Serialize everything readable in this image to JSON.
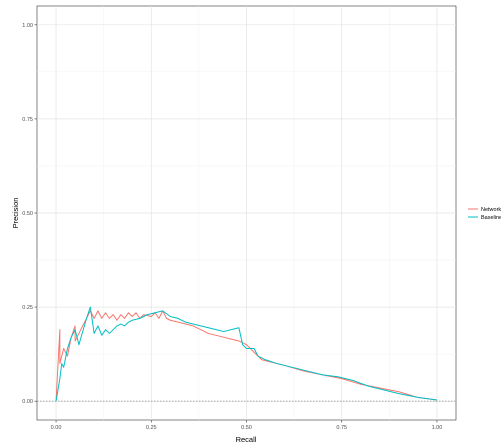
{
  "chart_data": {
    "type": "line",
    "xlabel": "Recall",
    "ylabel": "Precision",
    "xlim": [
      -0.05,
      1.05
    ],
    "ylim": [
      -0.05,
      1.05
    ],
    "x_ticks": [
      0.0,
      0.25,
      0.5,
      0.75,
      1.0
    ],
    "x_tick_labels": [
      "0.00",
      "0.25",
      "0.50",
      "0.75",
      "1.00"
    ],
    "y_ticks": [
      0.0,
      0.25,
      0.5,
      0.75,
      1.0
    ],
    "y_tick_labels": [
      "0.00",
      "0.25",
      "0.50",
      "0.75",
      "1.00"
    ],
    "grid": true,
    "legend_position": "right",
    "reference_line": {
      "y": 0.0,
      "style": "dotted",
      "color": "#999999"
    },
    "series": [
      {
        "name": "Network",
        "color": "#F8766D",
        "points": [
          [
            0.0,
            0.0
          ],
          [
            0.01,
            0.19
          ],
          [
            0.01,
            0.1
          ],
          [
            0.02,
            0.14
          ],
          [
            0.03,
            0.12
          ],
          [
            0.04,
            0.17
          ],
          [
            0.05,
            0.2
          ],
          [
            0.05,
            0.16
          ],
          [
            0.07,
            0.2
          ],
          [
            0.09,
            0.24
          ],
          [
            0.1,
            0.22
          ],
          [
            0.11,
            0.24
          ],
          [
            0.12,
            0.22
          ],
          [
            0.13,
            0.235
          ],
          [
            0.14,
            0.22
          ],
          [
            0.15,
            0.23
          ],
          [
            0.16,
            0.215
          ],
          [
            0.17,
            0.23
          ],
          [
            0.18,
            0.22
          ],
          [
            0.19,
            0.235
          ],
          [
            0.2,
            0.225
          ],
          [
            0.21,
            0.235
          ],
          [
            0.22,
            0.22
          ],
          [
            0.23,
            0.23
          ],
          [
            0.25,
            0.225
          ],
          [
            0.26,
            0.235
          ],
          [
            0.27,
            0.22
          ],
          [
            0.28,
            0.24
          ],
          [
            0.29,
            0.22
          ],
          [
            0.3,
            0.215
          ],
          [
            0.32,
            0.21
          ],
          [
            0.34,
            0.205
          ],
          [
            0.36,
            0.2
          ],
          [
            0.38,
            0.19
          ],
          [
            0.4,
            0.18
          ],
          [
            0.42,
            0.175
          ],
          [
            0.44,
            0.17
          ],
          [
            0.46,
            0.165
          ],
          [
            0.48,
            0.16
          ],
          [
            0.5,
            0.15
          ],
          [
            0.52,
            0.13
          ],
          [
            0.54,
            0.11
          ],
          [
            0.56,
            0.105
          ],
          [
            0.6,
            0.095
          ],
          [
            0.65,
            0.08
          ],
          [
            0.7,
            0.07
          ],
          [
            0.75,
            0.06
          ],
          [
            0.8,
            0.045
          ],
          [
            0.85,
            0.035
          ],
          [
            0.9,
            0.025
          ],
          [
            0.95,
            0.01
          ],
          [
            1.0,
            0.003
          ]
        ]
      },
      {
        "name": "Baseline",
        "color": "#00BFC4",
        "points": [
          [
            0.0,
            0.0
          ],
          [
            0.01,
            0.06
          ],
          [
            0.015,
            0.1
          ],
          [
            0.02,
            0.09
          ],
          [
            0.03,
            0.14
          ],
          [
            0.04,
            0.17
          ],
          [
            0.05,
            0.19
          ],
          [
            0.06,
            0.15
          ],
          [
            0.08,
            0.22
          ],
          [
            0.09,
            0.25
          ],
          [
            0.1,
            0.18
          ],
          [
            0.11,
            0.2
          ],
          [
            0.12,
            0.175
          ],
          [
            0.13,
            0.19
          ],
          [
            0.14,
            0.18
          ],
          [
            0.15,
            0.19
          ],
          [
            0.16,
            0.2
          ],
          [
            0.17,
            0.205
          ],
          [
            0.18,
            0.2
          ],
          [
            0.19,
            0.21
          ],
          [
            0.2,
            0.215
          ],
          [
            0.22,
            0.22
          ],
          [
            0.24,
            0.23
          ],
          [
            0.26,
            0.235
          ],
          [
            0.28,
            0.24
          ],
          [
            0.3,
            0.225
          ],
          [
            0.32,
            0.22
          ],
          [
            0.34,
            0.21
          ],
          [
            0.36,
            0.205
          ],
          [
            0.38,
            0.2
          ],
          [
            0.4,
            0.195
          ],
          [
            0.42,
            0.19
          ],
          [
            0.44,
            0.185
          ],
          [
            0.46,
            0.19
          ],
          [
            0.48,
            0.195
          ],
          [
            0.49,
            0.15
          ],
          [
            0.5,
            0.14
          ],
          [
            0.52,
            0.14
          ],
          [
            0.53,
            0.12
          ],
          [
            0.55,
            0.11
          ],
          [
            0.58,
            0.1
          ],
          [
            0.62,
            0.09
          ],
          [
            0.66,
            0.08
          ],
          [
            0.7,
            0.07
          ],
          [
            0.74,
            0.065
          ],
          [
            0.78,
            0.055
          ],
          [
            0.82,
            0.04
          ],
          [
            0.86,
            0.03
          ],
          [
            0.9,
            0.02
          ],
          [
            0.95,
            0.01
          ],
          [
            1.0,
            0.003
          ]
        ]
      }
    ]
  }
}
